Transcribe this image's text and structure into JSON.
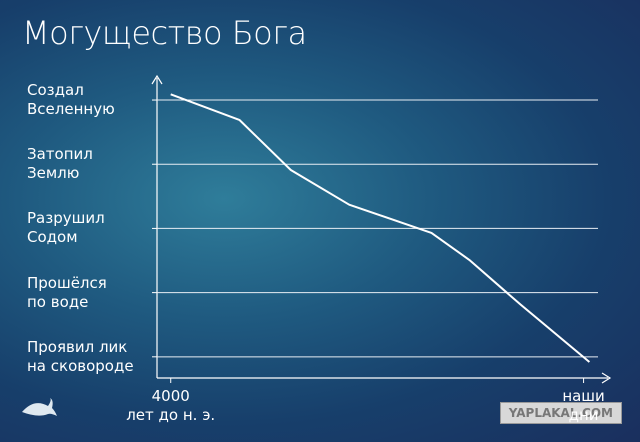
{
  "chart_data": {
    "type": "line",
    "title": "Могущество Бога",
    "x": [
      -4000,
      -3000,
      -2250,
      -1400,
      -200,
      350,
      1100,
      2100
    ],
    "series": [
      {
        "color": "#ffffff",
        "values": [
          4.09,
          3.69,
          2.91,
          2.37,
          1.93,
          1.51,
          0.81,
          -0.08
        ]
      }
    ],
    "xlim": [
      -4200,
      2400
    ],
    "xticks": [
      {
        "value": -4000,
        "label": "4000\nлет до н. э."
      },
      {
        "value": 2015,
        "label": "наши\nдни"
      }
    ],
    "ylim": [
      -0.33,
      4.39
    ],
    "yticks": [
      {
        "value": 0,
        "label": "Проявил лик\nна сковороде"
      },
      {
        "value": 1,
        "label": "Прошёлся\nпо воде"
      },
      {
        "value": 2,
        "label": "Разрушил\nСодом"
      },
      {
        "value": 3,
        "label": "Затопил\nЗемлю"
      },
      {
        "value": 4,
        "label": "Создал\nВселенную"
      }
    ],
    "grid": true,
    "watermark": "YAPLAKAL.COM"
  }
}
